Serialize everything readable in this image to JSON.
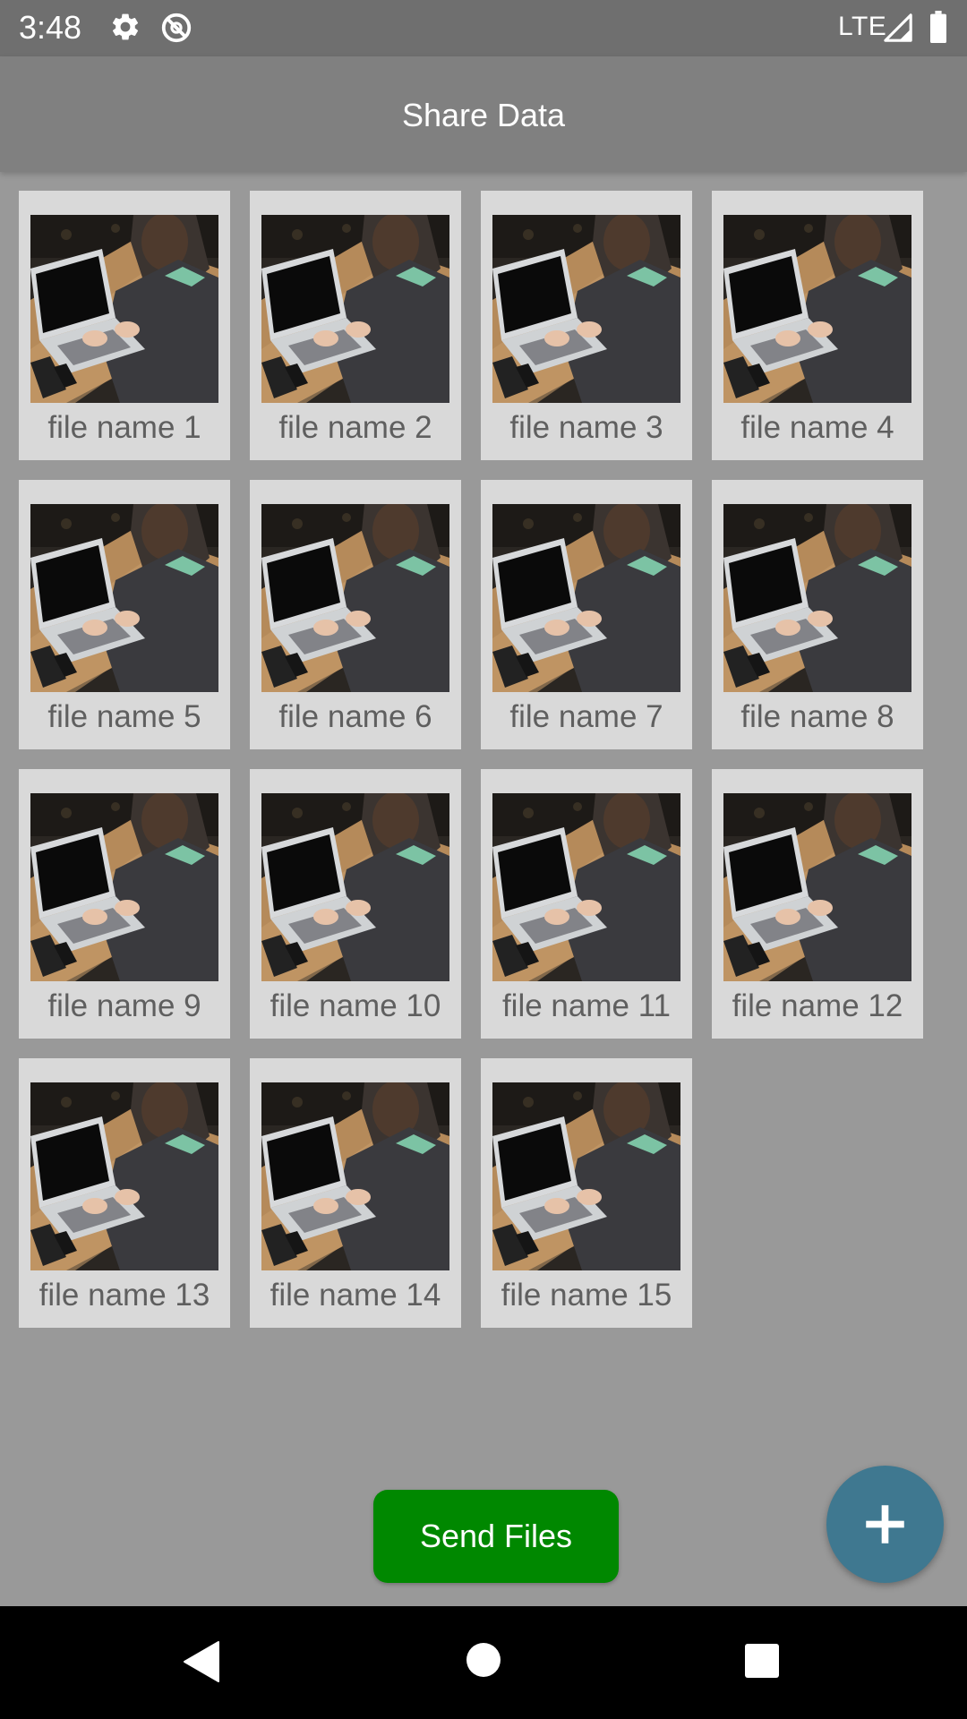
{
  "status_bar": {
    "time": "3:48",
    "network": "LTE",
    "icons": [
      "gear-icon",
      "do-not-disturb-icon",
      "signal-icon",
      "battery-icon"
    ]
  },
  "app_bar": {
    "title": "Share Data"
  },
  "files": [
    {
      "name": "file name 1"
    },
    {
      "name": "file name 2"
    },
    {
      "name": "file name 3"
    },
    {
      "name": "file name 4"
    },
    {
      "name": "file name 5"
    },
    {
      "name": "file name 6"
    },
    {
      "name": "file name 7"
    },
    {
      "name": "file name 8"
    },
    {
      "name": "file name 9"
    },
    {
      "name": "file name 10"
    },
    {
      "name": "file name 11"
    },
    {
      "name": "file name 12"
    },
    {
      "name": "file name 13"
    },
    {
      "name": "file name 14"
    },
    {
      "name": "file name 15"
    }
  ],
  "send_button": {
    "label": "Send Files"
  },
  "fab": {
    "icon": "plus-icon"
  },
  "nav_bar": {
    "icons": [
      "back-triangle-icon",
      "home-circle-icon",
      "recents-square-icon"
    ]
  },
  "colors": {
    "status_bar": "#6f6f6f",
    "app_bar": "#808080",
    "background": "#999999",
    "tile": "#d9d9d9",
    "send_button": "#008800",
    "fab": "#3f7890",
    "nav_bar": "#000000"
  }
}
